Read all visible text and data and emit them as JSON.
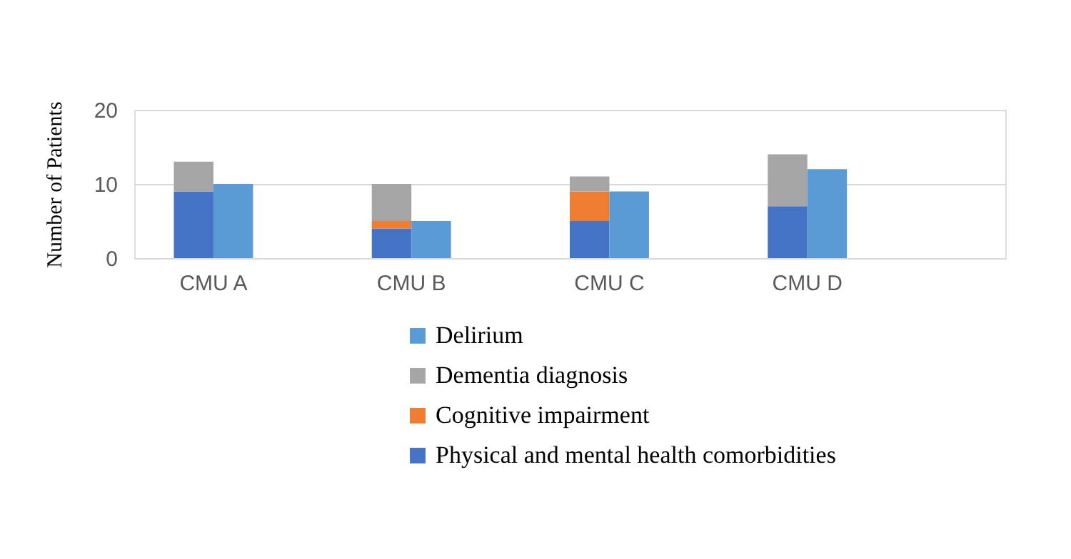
{
  "chart_data": {
    "type": "bar",
    "ylabel": "Number of Patients",
    "categories": [
      "CMU A",
      null,
      null,
      null,
      null,
      "CMU B",
      null,
      null,
      null,
      null,
      "CMU C",
      null,
      null,
      null,
      null,
      "CMU D",
      null,
      null,
      null,
      null
    ],
    "stacked": true,
    "series": [
      {
        "name": "Physical and mental health comorbidities",
        "color": "#4472c4",
        "values": [
          9,
          null,
          null,
          null,
          null,
          4,
          null,
          null,
          null,
          null,
          5,
          null,
          null,
          null,
          null,
          7,
          null,
          null,
          null,
          null
        ]
      },
      {
        "name": "Cognitive impairment",
        "color": "#ed7d31",
        "values": [
          0,
          null,
          null,
          null,
          null,
          1,
          null,
          null,
          null,
          null,
          4,
          null,
          null,
          null,
          null,
          0,
          null,
          null,
          null,
          null
        ]
      },
      {
        "name": "Dementia diagnosis",
        "color": "#a5a5a5",
        "values": [
          4,
          null,
          null,
          null,
          null,
          5,
          null,
          null,
          null,
          null,
          2,
          null,
          null,
          null,
          null,
          7,
          null,
          null,
          null,
          null
        ]
      },
      {
        "name": "Delirium",
        "color": "#5b9bd5",
        "values": [
          null,
          10,
          null,
          null,
          null,
          null,
          5,
          null,
          null,
          null,
          null,
          9,
          null,
          null,
          null,
          null,
          12,
          null,
          null,
          null
        ]
      }
    ],
    "ylim": [
      0,
      20
    ],
    "yticks": [
      0,
      10,
      20
    ],
    "grid": "y",
    "legend": "bottom"
  }
}
